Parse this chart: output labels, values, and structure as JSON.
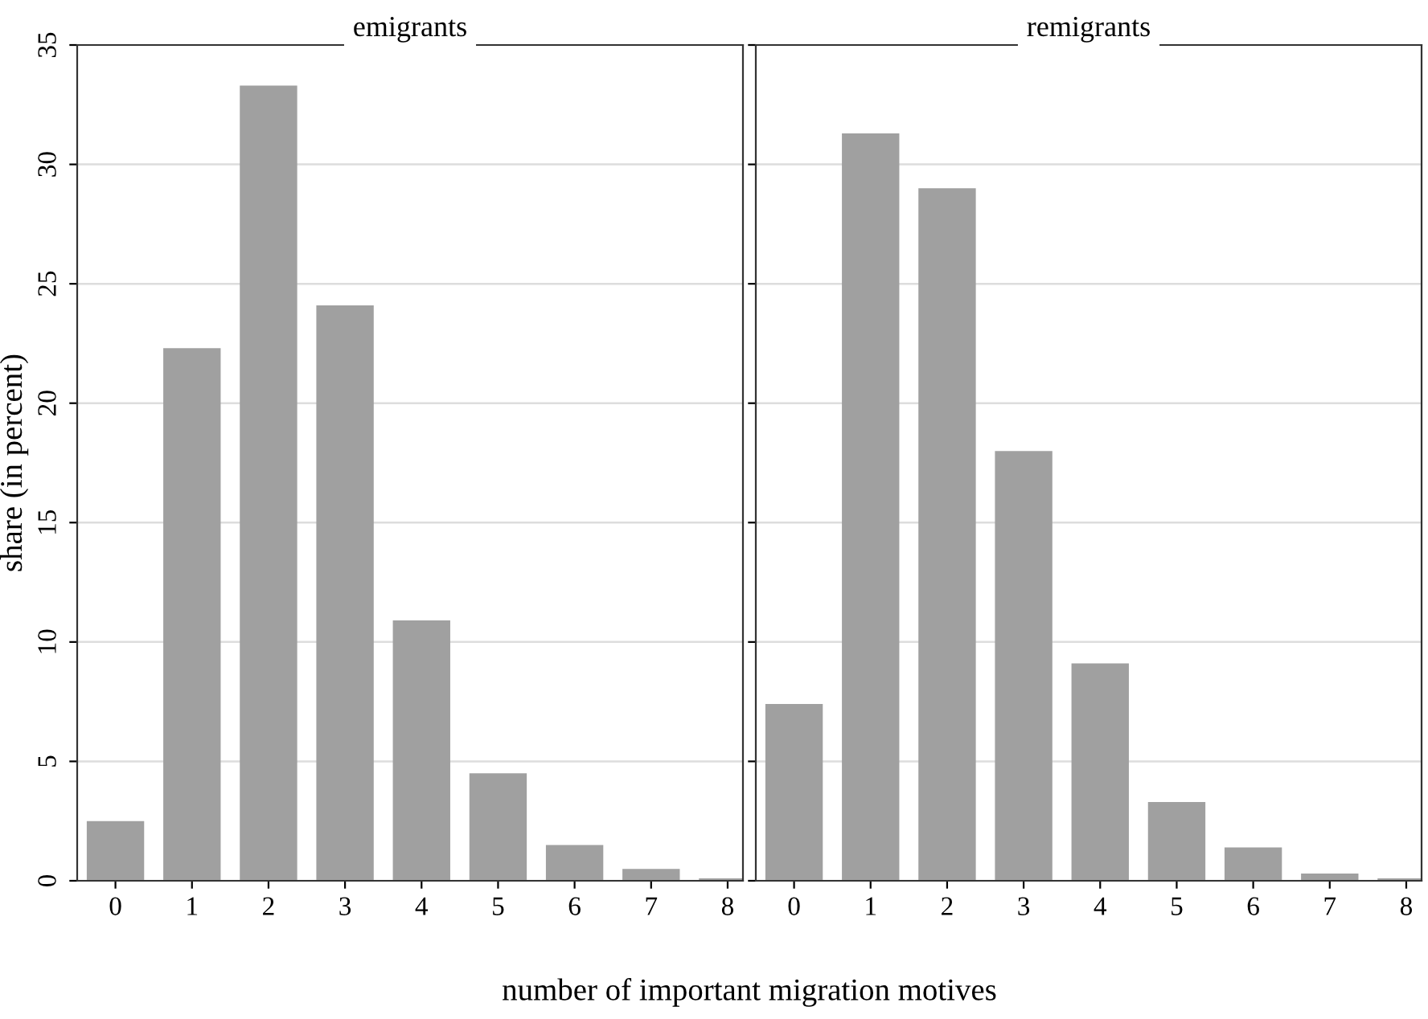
{
  "chart_data": [
    {
      "type": "bar",
      "title": "emigrants",
      "ylabel": "share (in percent)",
      "xlabel": "number of important migration motives",
      "categories": [
        "0",
        "1",
        "2",
        "3",
        "4",
        "5",
        "6",
        "7",
        "8"
      ],
      "values": [
        2.5,
        22.3,
        33.3,
        24.1,
        10.9,
        4.5,
        1.5,
        0.5,
        0.1
      ],
      "color": "#a0a0a0",
      "ylim": [
        0,
        35
      ],
      "yticks": [
        0,
        5,
        10,
        15,
        20,
        25,
        30,
        35
      ],
      "grid": "y"
    },
    {
      "type": "bar",
      "title": "remigrants",
      "categories": [
        "0",
        "1",
        "2",
        "3",
        "4",
        "5",
        "6",
        "7",
        "8"
      ],
      "values": [
        7.4,
        31.3,
        29.0,
        18.0,
        9.1,
        3.3,
        1.4,
        0.3,
        0.1
      ],
      "color": "#a0a0a0",
      "ylim": [
        0,
        35
      ],
      "yticks": [
        0,
        5,
        10,
        15,
        20,
        25,
        30,
        35
      ],
      "grid": "y",
      "tick_labels": "x"
    }
  ]
}
